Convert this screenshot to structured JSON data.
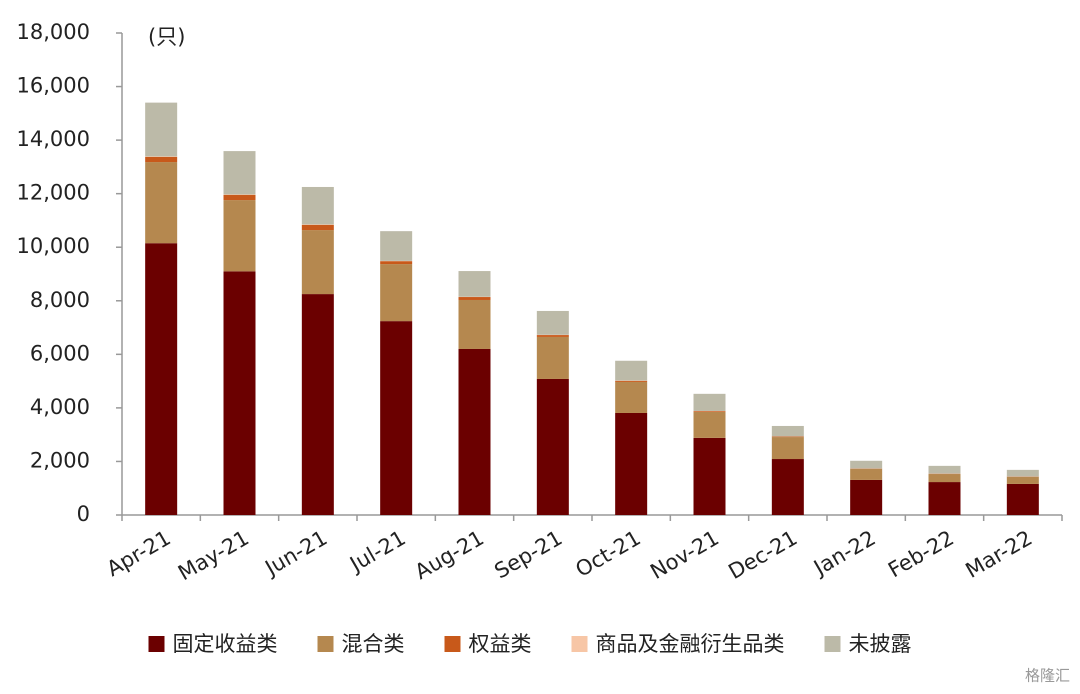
{
  "chart_data": {
    "type": "stacked_bar",
    "unit_label": "(只)",
    "categories": [
      "Apr-21",
      "May-21",
      "Jun-21",
      "Jul-21",
      "Aug-21",
      "Sep-21",
      "Oct-21",
      "Nov-21",
      "Dec-21",
      "Jan-22",
      "Feb-22",
      "Mar-22"
    ],
    "series": [
      {
        "name": "固定收益类",
        "color": "#6b0000",
        "values": [
          10150,
          9100,
          8250,
          7240,
          6200,
          5080,
          3810,
          2880,
          2090,
          1310,
          1230,
          1160
        ]
      },
      {
        "name": "混合类",
        "color": "#b5884f",
        "values": [
          3030,
          2660,
          2390,
          2130,
          1830,
          1570,
          1160,
          970,
          820,
          410,
          300,
          260
        ]
      },
      {
        "name": "权益类",
        "color": "#c8591a",
        "values": [
          190,
          190,
          190,
          110,
          110,
          70,
          40,
          30,
          20,
          10,
          10,
          10
        ]
      },
      {
        "name": "商品及金融衍生品类",
        "color": "#f7c6a6",
        "values": [
          20,
          20,
          20,
          10,
          10,
          10,
          10,
          5,
          5,
          5,
          5,
          5
        ]
      },
      {
        "name": "未披露",
        "color": "#bcbaa8",
        "values": [
          2010,
          1620,
          1400,
          1110,
          960,
          890,
          740,
          640,
          390,
          290,
          290,
          250
        ]
      }
    ],
    "ylim": [
      0,
      18000
    ],
    "yticks": [
      0,
      {
        "value": 2000,
        "label": "2,000"
      },
      {
        "value": 4000,
        "label": "4,000"
      },
      {
        "value": 6000,
        "label": "6,000"
      },
      {
        "value": 8000,
        "label": "8,000"
      },
      {
        "value": 10000,
        "label": "10,000"
      },
      {
        "value": 12000,
        "label": "12,000"
      },
      {
        "value": 14000,
        "label": "14,000"
      },
      {
        "value": 16000,
        "label": "16,000"
      },
      {
        "value": 18000,
        "label": "18,000"
      }
    ],
    "legend": "bottom",
    "watermark": "格隆汇"
  }
}
